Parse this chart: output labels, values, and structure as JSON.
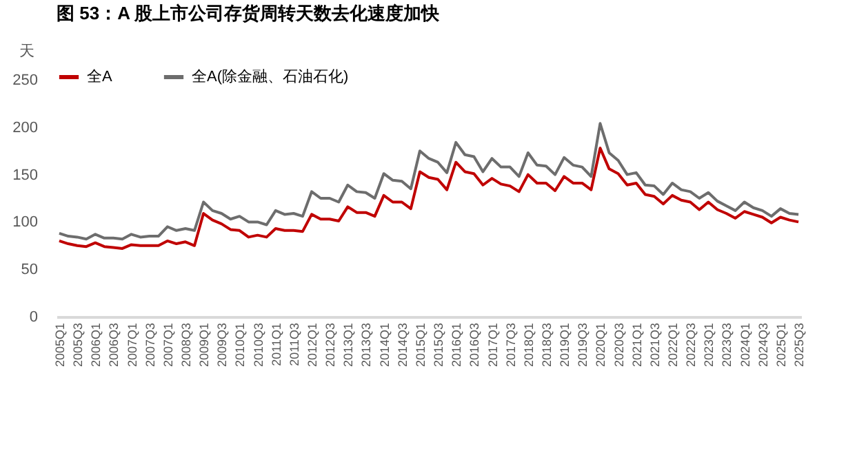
{
  "chart_data": {
    "type": "line",
    "title": "图 53：A 股上市公司存货周转天数去化速度加快",
    "ylabel": "天",
    "categories": [
      "2005Q1",
      null,
      "2005Q3",
      null,
      "2006Q1",
      null,
      "2006Q3",
      null,
      "2007Q1",
      null,
      "2007Q3",
      null,
      "2007Q1",
      null,
      "2008Q3",
      null,
      "2009Q1",
      null,
      "2009Q3",
      null,
      "2010Q1",
      null,
      "2010Q3",
      null,
      "2011Q1",
      null,
      "2011Q3",
      null,
      "2012Q1",
      null,
      "2012Q3",
      null,
      "2013Q1",
      null,
      "2013Q3",
      null,
      "2014Q1",
      null,
      "2014Q3",
      null,
      "2015Q1",
      null,
      "2015Q3",
      null,
      "2016Q1",
      null,
      "2016Q3",
      null,
      "2017Q1",
      null,
      "2017Q3",
      null,
      "2018Q1",
      null,
      "2018Q3",
      null,
      "2019Q1",
      null,
      "2019Q3",
      null,
      "2020Q1",
      null,
      "2020Q3",
      null,
      "2021Q1",
      null,
      "2021Q3",
      null,
      "2022Q1",
      null,
      "2022Q3",
      null,
      "2023Q1",
      null,
      "2023Q3",
      null,
      "2024Q1",
      null,
      "2024Q3",
      null,
      "2025Q1",
      null,
      "2025Q3"
    ],
    "series": [
      {
        "name": "全A",
        "color": "#c00000",
        "values": [
          80,
          77,
          75,
          74,
          78,
          74,
          73,
          72,
          76,
          75,
          75,
          75,
          80,
          77,
          79,
          75,
          109,
          102,
          98,
          92,
          91,
          84,
          86,
          84,
          93,
          91,
          91,
          90,
          108,
          103,
          103,
          101,
          116,
          110,
          110,
          106,
          128,
          121,
          121,
          114,
          153,
          147,
          145,
          134,
          163,
          153,
          151,
          139,
          146,
          140,
          138,
          132,
          150,
          141,
          141,
          133,
          148,
          141,
          141,
          134,
          178,
          156,
          151,
          139,
          141,
          129,
          127,
          119,
          128,
          123,
          121,
          113,
          121,
          113,
          109,
          104,
          111,
          108,
          105,
          99,
          105,
          102,
          100
        ]
      },
      {
        "name": "全A(除金融、石油石化)",
        "color": "#6d6d6d",
        "values": [
          88,
          85,
          84,
          82,
          87,
          83,
          83,
          82,
          87,
          84,
          85,
          85,
          95,
          91,
          93,
          91,
          121,
          112,
          109,
          103,
          106,
          100,
          100,
          97,
          112,
          108,
          109,
          106,
          132,
          125,
          125,
          121,
          139,
          132,
          131,
          125,
          151,
          144,
          143,
          135,
          175,
          167,
          163,
          152,
          184,
          171,
          169,
          153,
          167,
          158,
          158,
          148,
          173,
          160,
          159,
          150,
          168,
          160,
          158,
          148,
          204,
          173,
          165,
          150,
          152,
          139,
          138,
          129,
          141,
          134,
          132,
          125,
          131,
          122,
          117,
          112,
          121,
          115,
          112,
          106,
          114,
          109,
          108
        ]
      }
    ],
    "ylim": [
      0,
      250
    ],
    "yticks": [
      0,
      50,
      100,
      150,
      200,
      250
    ],
    "grid": false,
    "legend": "top",
    "line_style": "solid",
    "marker": "none"
  }
}
